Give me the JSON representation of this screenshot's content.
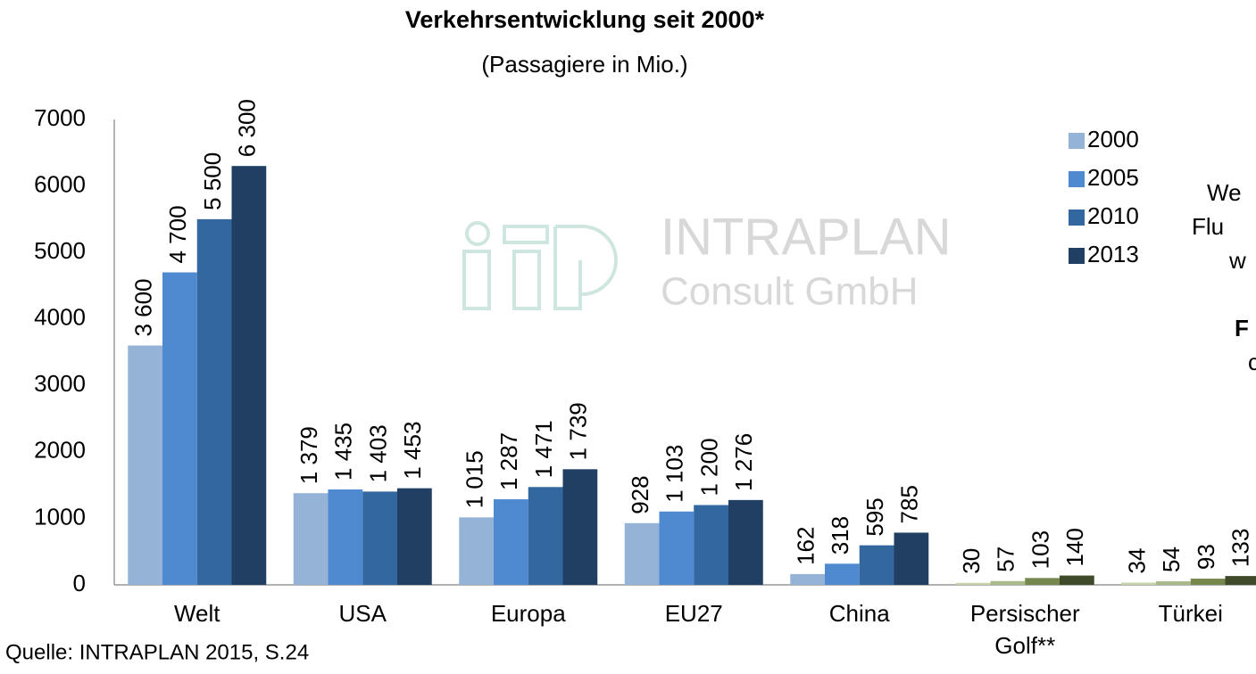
{
  "chart_data": {
    "type": "bar",
    "title": "Verkehrsentwicklung seit 2000*",
    "subtitle": "(Passagiere in Mio.)",
    "source": "Quelle: INTRAPLAN 2015, S.24",
    "watermark": [
      "INTRAPLAN",
      "Consult GmbH"
    ],
    "side_text": [
      "We",
      "Flu",
      "w",
      "F",
      "c"
    ],
    "categories": [
      "Welt",
      "USA",
      "Europa",
      "EU27",
      "China",
      "Persischer Golf**",
      "Türkei"
    ],
    "series": [
      {
        "name": "2000",
        "color": "#95b3d7",
        "colors": [
          "#95b3d7",
          "#95b3d7",
          "#95b3d7",
          "#95b3d7",
          "#95b3d7",
          "#c9d3a9",
          "#c9d3a9"
        ],
        "values": [
          3600,
          1379,
          1015,
          928,
          162,
          30,
          34
        ],
        "value_labels": [
          "3 600",
          "1 379",
          "1 015",
          "928",
          "162",
          "30",
          "34"
        ]
      },
      {
        "name": "2005",
        "color": "#4f8ad0",
        "colors": [
          "#4f8ad0",
          "#4f8ad0",
          "#4f8ad0",
          "#4f8ad0",
          "#4f8ad0",
          "#a9b98a",
          "#a9b98a"
        ],
        "values": [
          4700,
          1435,
          1287,
          1103,
          318,
          57,
          54
        ],
        "value_labels": [
          "4 700",
          "1 435",
          "1 287",
          "1 103",
          "318",
          "57",
          "54"
        ]
      },
      {
        "name": "2010",
        "color": "#32679f",
        "colors": [
          "#32679f",
          "#32679f",
          "#32679f",
          "#32679f",
          "#32679f",
          "#76884d",
          "#76884d"
        ],
        "values": [
          5500,
          1403,
          1471,
          1200,
          595,
          103,
          93
        ],
        "value_labels": [
          "5 500",
          "1 403",
          "1 471",
          "1 200",
          "595",
          "103",
          "93"
        ]
      },
      {
        "name": "2013",
        "color": "#213f62",
        "colors": [
          "#213f62",
          "#213f62",
          "#213f62",
          "#213f62",
          "#213f62",
          "#3e4a2a",
          "#3e4a2a"
        ],
        "values": [
          6300,
          1453,
          1739,
          1276,
          785,
          140,
          133
        ],
        "value_labels": [
          "6 300",
          "1 453",
          "1 739",
          "1 276",
          "785",
          "140",
          "133"
        ]
      }
    ],
    "ylim": [
      0,
      7000
    ],
    "yticks": [
      0,
      1000,
      2000,
      3000,
      4000,
      5000,
      6000,
      7000
    ],
    "grid": false,
    "legend": "right"
  }
}
